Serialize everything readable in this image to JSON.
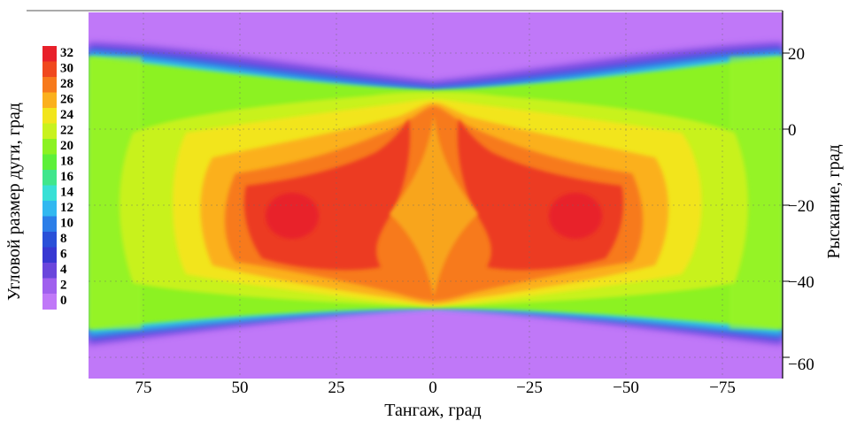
{
  "chart_data": {
    "type": "heatmap",
    "title": "",
    "xlabel": "Тангаж, град",
    "ylabel": "Рыскание, град",
    "colorbar_label": "Угловой размер дуги, град",
    "x_ticks": [
      "75",
      "50",
      "25",
      "0",
      "−25",
      "−50",
      "−75"
    ],
    "x_tick_values": [
      75,
      50,
      25,
      0,
      -25,
      -50,
      -75
    ],
    "xlim": [
      90,
      -90
    ],
    "y_ticks": [
      "20",
      "0",
      "−20",
      "−40",
      "−60"
    ],
    "y_tick_values": [
      20,
      0,
      -20,
      -40,
      -60
    ],
    "ylim": [
      -65,
      33
    ],
    "y_axis_side": "right",
    "colorbar_ticks": [
      "32",
      "30",
      "28",
      "26",
      "24",
      "22",
      "20",
      "18",
      "16",
      "14",
      "12",
      "10",
      "8",
      "6",
      "4",
      "2",
      "0"
    ],
    "colorbar_values": [
      32,
      30,
      28,
      26,
      24,
      22,
      20,
      18,
      16,
      14,
      12,
      10,
      8,
      6,
      4,
      2,
      0
    ],
    "colorbar_colors": [
      "#e8202a",
      "#f0481e",
      "#f77a1c",
      "#fbb01d",
      "#f2e51c",
      "#c8f21e",
      "#8cf222",
      "#5df03a",
      "#40e68c",
      "#38e0d6",
      "#32b8f0",
      "#2c7ee8",
      "#2a50d8",
      "#3838d2",
      "#6a46dc",
      "#a060ee",
      "#c078f8"
    ],
    "colorbar_side": "left",
    "grid": true,
    "description_regions": {
      "edge_value": 0,
      "band_value_near_edges": 6,
      "outer_value": 20,
      "peak_value": 30,
      "center_value": 28
    }
  }
}
